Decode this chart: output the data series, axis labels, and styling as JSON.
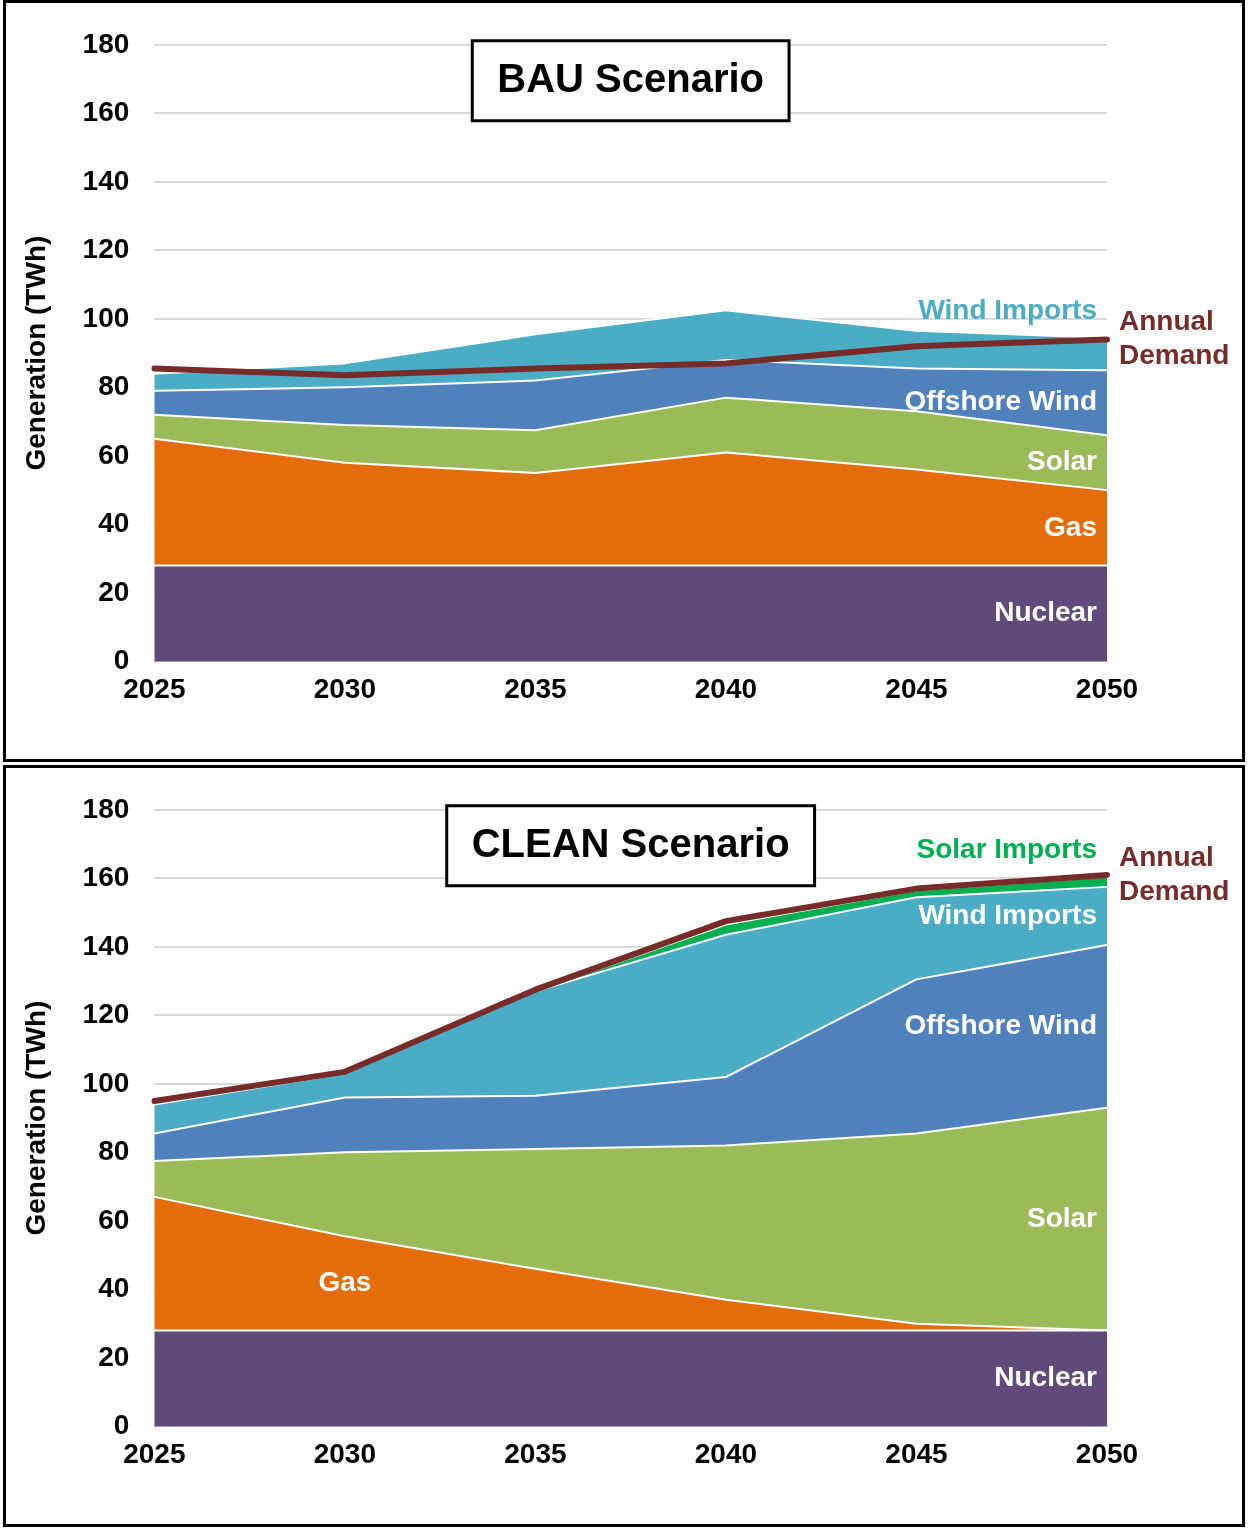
{
  "chart_data": [
    {
      "type": "area",
      "title": "BAU Scenario",
      "ylabel": "Generation (TWh)",
      "categories": [
        "2025",
        "2030",
        "2035",
        "2040",
        "2045",
        "2050"
      ],
      "stacked": true,
      "grid": "y",
      "legend": false,
      "ylim": [
        0,
        180
      ],
      "yticks": [
        0,
        20,
        40,
        60,
        80,
        100,
        120,
        140,
        160,
        180
      ],
      "series": [
        {
          "name": "Nuclear",
          "color": "#604a7b",
          "values": [
            28,
            28,
            28,
            28,
            28,
            28
          ]
        },
        {
          "name": "Gas",
          "color": "#e46c0a",
          "values": [
            37,
            30,
            27,
            33,
            28,
            22
          ]
        },
        {
          "name": "Solar",
          "color": "#9bbb59",
          "values": [
            7,
            11,
            12.5,
            16,
            17,
            16
          ]
        },
        {
          "name": "Offshore Wind",
          "color": "#4f81bd",
          "values": [
            7,
            11,
            14.5,
            11,
            12.5,
            19
          ]
        },
        {
          "name": "Wind Imports",
          "color": "#4bacc6",
          "values": [
            5,
            7,
            13.5,
            14.5,
            11,
            9.5
          ]
        },
        {
          "name": "Annual Demand",
          "type": "line",
          "color": "#772c2a",
          "values": [
            85.5,
            83.5,
            85.5,
            87,
            92,
            94
          ]
        }
      ]
    },
    {
      "type": "area",
      "title": "CLEAN Scenario",
      "ylabel": "Generation (TWh)",
      "categories": [
        "2025",
        "2030",
        "2035",
        "2040",
        "2045",
        "2050"
      ],
      "stacked": true,
      "grid": "y",
      "legend": false,
      "ylim": [
        0,
        180
      ],
      "yticks": [
        0,
        20,
        40,
        60,
        80,
        100,
        120,
        140,
        160,
        180
      ],
      "series": [
        {
          "name": "Nuclear",
          "color": "#604a7b",
          "values": [
            28,
            28,
            28,
            28,
            28,
            28
          ]
        },
        {
          "name": "Gas",
          "color": "#e46c0a",
          "values": [
            39,
            27.5,
            18,
            9,
            2,
            0
          ]
        },
        {
          "name": "Solar",
          "color": "#9bbb59",
          "values": [
            10.5,
            24.5,
            35,
            45,
            55.5,
            65
          ]
        },
        {
          "name": "Offshore Wind",
          "color": "#4f81bd",
          "values": [
            8,
            16,
            15.5,
            20,
            45,
            47.5
          ]
        },
        {
          "name": "Wind Imports",
          "color": "#4bacc6",
          "values": [
            8.5,
            7,
            30.5,
            41.5,
            24,
            17
          ]
        },
        {
          "name": "Solar Imports",
          "color": "#00b050",
          "values": [
            0,
            0,
            0,
            3,
            2,
            3
          ]
        },
        {
          "name": "Annual Demand",
          "type": "line",
          "color": "#772c2a",
          "values": [
            95,
            103.5,
            127.5,
            147.5,
            157,
            161
          ]
        }
      ]
    }
  ]
}
